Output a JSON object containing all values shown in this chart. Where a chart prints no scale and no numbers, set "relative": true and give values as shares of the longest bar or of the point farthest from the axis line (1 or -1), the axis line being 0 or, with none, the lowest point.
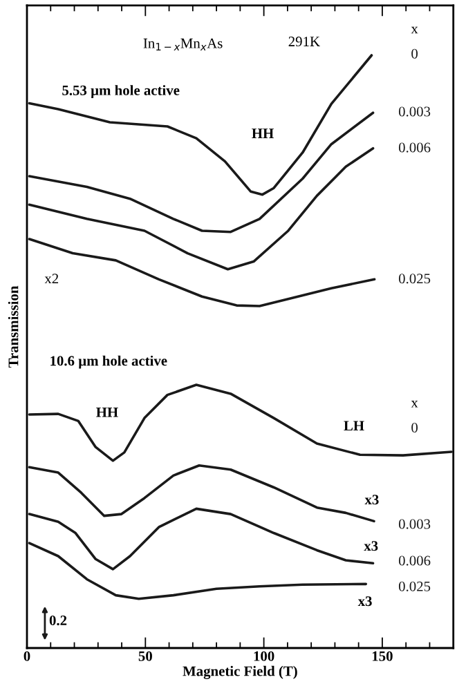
{
  "chart_data": {
    "type": "line",
    "relative": true,
    "xlabel": "Magnetic Field (T)",
    "ylabel": "Transmission",
    "xlim": [
      0,
      180
    ],
    "xticks": [
      0,
      {
        "value": 10,
        "label": null
      },
      {
        "value": 20,
        "label": null
      },
      {
        "value": 30,
        "label": null
      },
      {
        "value": 40,
        "label": null
      },
      50,
      {
        "value": 60,
        "label": null
      },
      {
        "value": 70,
        "label": null
      },
      {
        "value": 80,
        "label": null
      },
      {
        "value": 90,
        "label": null
      },
      100,
      {
        "value": 110,
        "label": null
      },
      {
        "value": 120,
        "label": null
      },
      {
        "value": 130,
        "label": null
      },
      {
        "value": 140,
        "label": null
      },
      150,
      {
        "value": 160,
        "label": null
      },
      {
        "value": 170,
        "label": null
      }
    ],
    "tick_labels": "x",
    "marker": "none",
    "line_style": "solid",
    "series": [
      {
        "name": "0",
        "color": "#1a1a1a",
        "x": [
          1,
          13.2,
          35,
          59.3,
          71.5,
          83.6,
          94.5,
          99.4,
          104.2,
          116.4,
          128.5,
          145.5
        ],
        "values": [
          0.919,
          0.909,
          0.887,
          0.88,
          0.86,
          0.821,
          0.77,
          0.765,
          0.776,
          0.836,
          0.918,
          1.0
        ]
      },
      {
        "name": "0.003",
        "color": "#1a1a1a",
        "x": [
          1,
          25.3,
          43.5,
          61.8,
          73.9,
          86,
          98.2,
          116.4,
          128.5,
          146.1
        ],
        "values": [
          0.796,
          0.778,
          0.758,
          0.724,
          0.704,
          0.702,
          0.724,
          0.792,
          0.85,
          0.903
        ]
      },
      {
        "name": "0.006",
        "color": "#1a1a1a",
        "x": [
          1,
          25.3,
          49.6,
          67.8,
          84.8,
          95.7,
          110.3,
          122.4,
          134.6,
          146.1
        ],
        "values": [
          0.748,
          0.724,
          0.704,
          0.666,
          0.639,
          0.652,
          0.704,
          0.763,
          0.812,
          0.843
        ]
      },
      {
        "name": "0.025",
        "color": "#1a1a1a",
        "x": [
          1,
          19.3,
          37.5,
          55.7,
          73.9,
          88.5,
          98.2,
          110.3,
          128.5,
          146.7
        ],
        "values": [
          0.69,
          0.666,
          0.654,
          0.622,
          0.593,
          0.578,
          0.577,
          0.589,
          0.607,
          0.622
        ]
      },
      {
        "name": "0",
        "color": "#1a1a1a",
        "x": [
          1,
          13.2,
          21.7,
          29,
          36.3,
          41.1,
          49.6,
          59.3,
          71.5,
          86,
          104.2,
          122.4,
          140.6,
          158.8,
          179.2
        ],
        "values": [
          0.394,
          0.395,
          0.383,
          0.339,
          0.316,
          0.33,
          0.388,
          0.427,
          0.444,
          0.429,
          0.388,
          0.345,
          0.326,
          0.325,
          0.331
        ]
      },
      {
        "name": "0.003",
        "color": "#1a1a1a",
        "x": [
          1,
          13.2,
          22.9,
          32.6,
          39.9,
          49.6,
          61.8,
          72.7,
          86,
          104.2,
          122.4,
          134.6,
          146.5
        ],
        "values": [
          0.305,
          0.296,
          0.262,
          0.223,
          0.226,
          0.253,
          0.291,
          0.308,
          0.301,
          0.271,
          0.237,
          0.228,
          0.214
        ]
      },
      {
        "name": "0.006",
        "color": "#1a1a1a",
        "x": [
          1,
          13.2,
          20.5,
          29,
          36.3,
          43.5,
          55.7,
          71.5,
          86,
          104.2,
          122.4,
          134.6,
          146.1
        ],
        "values": [
          0.226,
          0.213,
          0.194,
          0.15,
          0.133,
          0.155,
          0.204,
          0.235,
          0.226,
          0.194,
          0.165,
          0.148,
          0.143
        ]
      },
      {
        "name": "0.025",
        "color": "#1a1a1a",
        "x": [
          1,
          13.2,
          25.3,
          37.5,
          47.2,
          61.8,
          80,
          98.2,
          116.4,
          143.1
        ],
        "values": [
          0.177,
          0.155,
          0.116,
          0.089,
          0.083,
          0.089,
          0.1,
          0.104,
          0.107,
          0.108
        ]
      }
    ],
    "annotations": [
      "In$_{1−x}$Mn$_{x}$As",
      "291K",
      "x",
      "5.53 µm hole active",
      "HH",
      "x2",
      "10.6 µm hole active",
      "x",
      "HH",
      "LH",
      "x3",
      "x3",
      "x3",
      "0.2"
    ]
  }
}
